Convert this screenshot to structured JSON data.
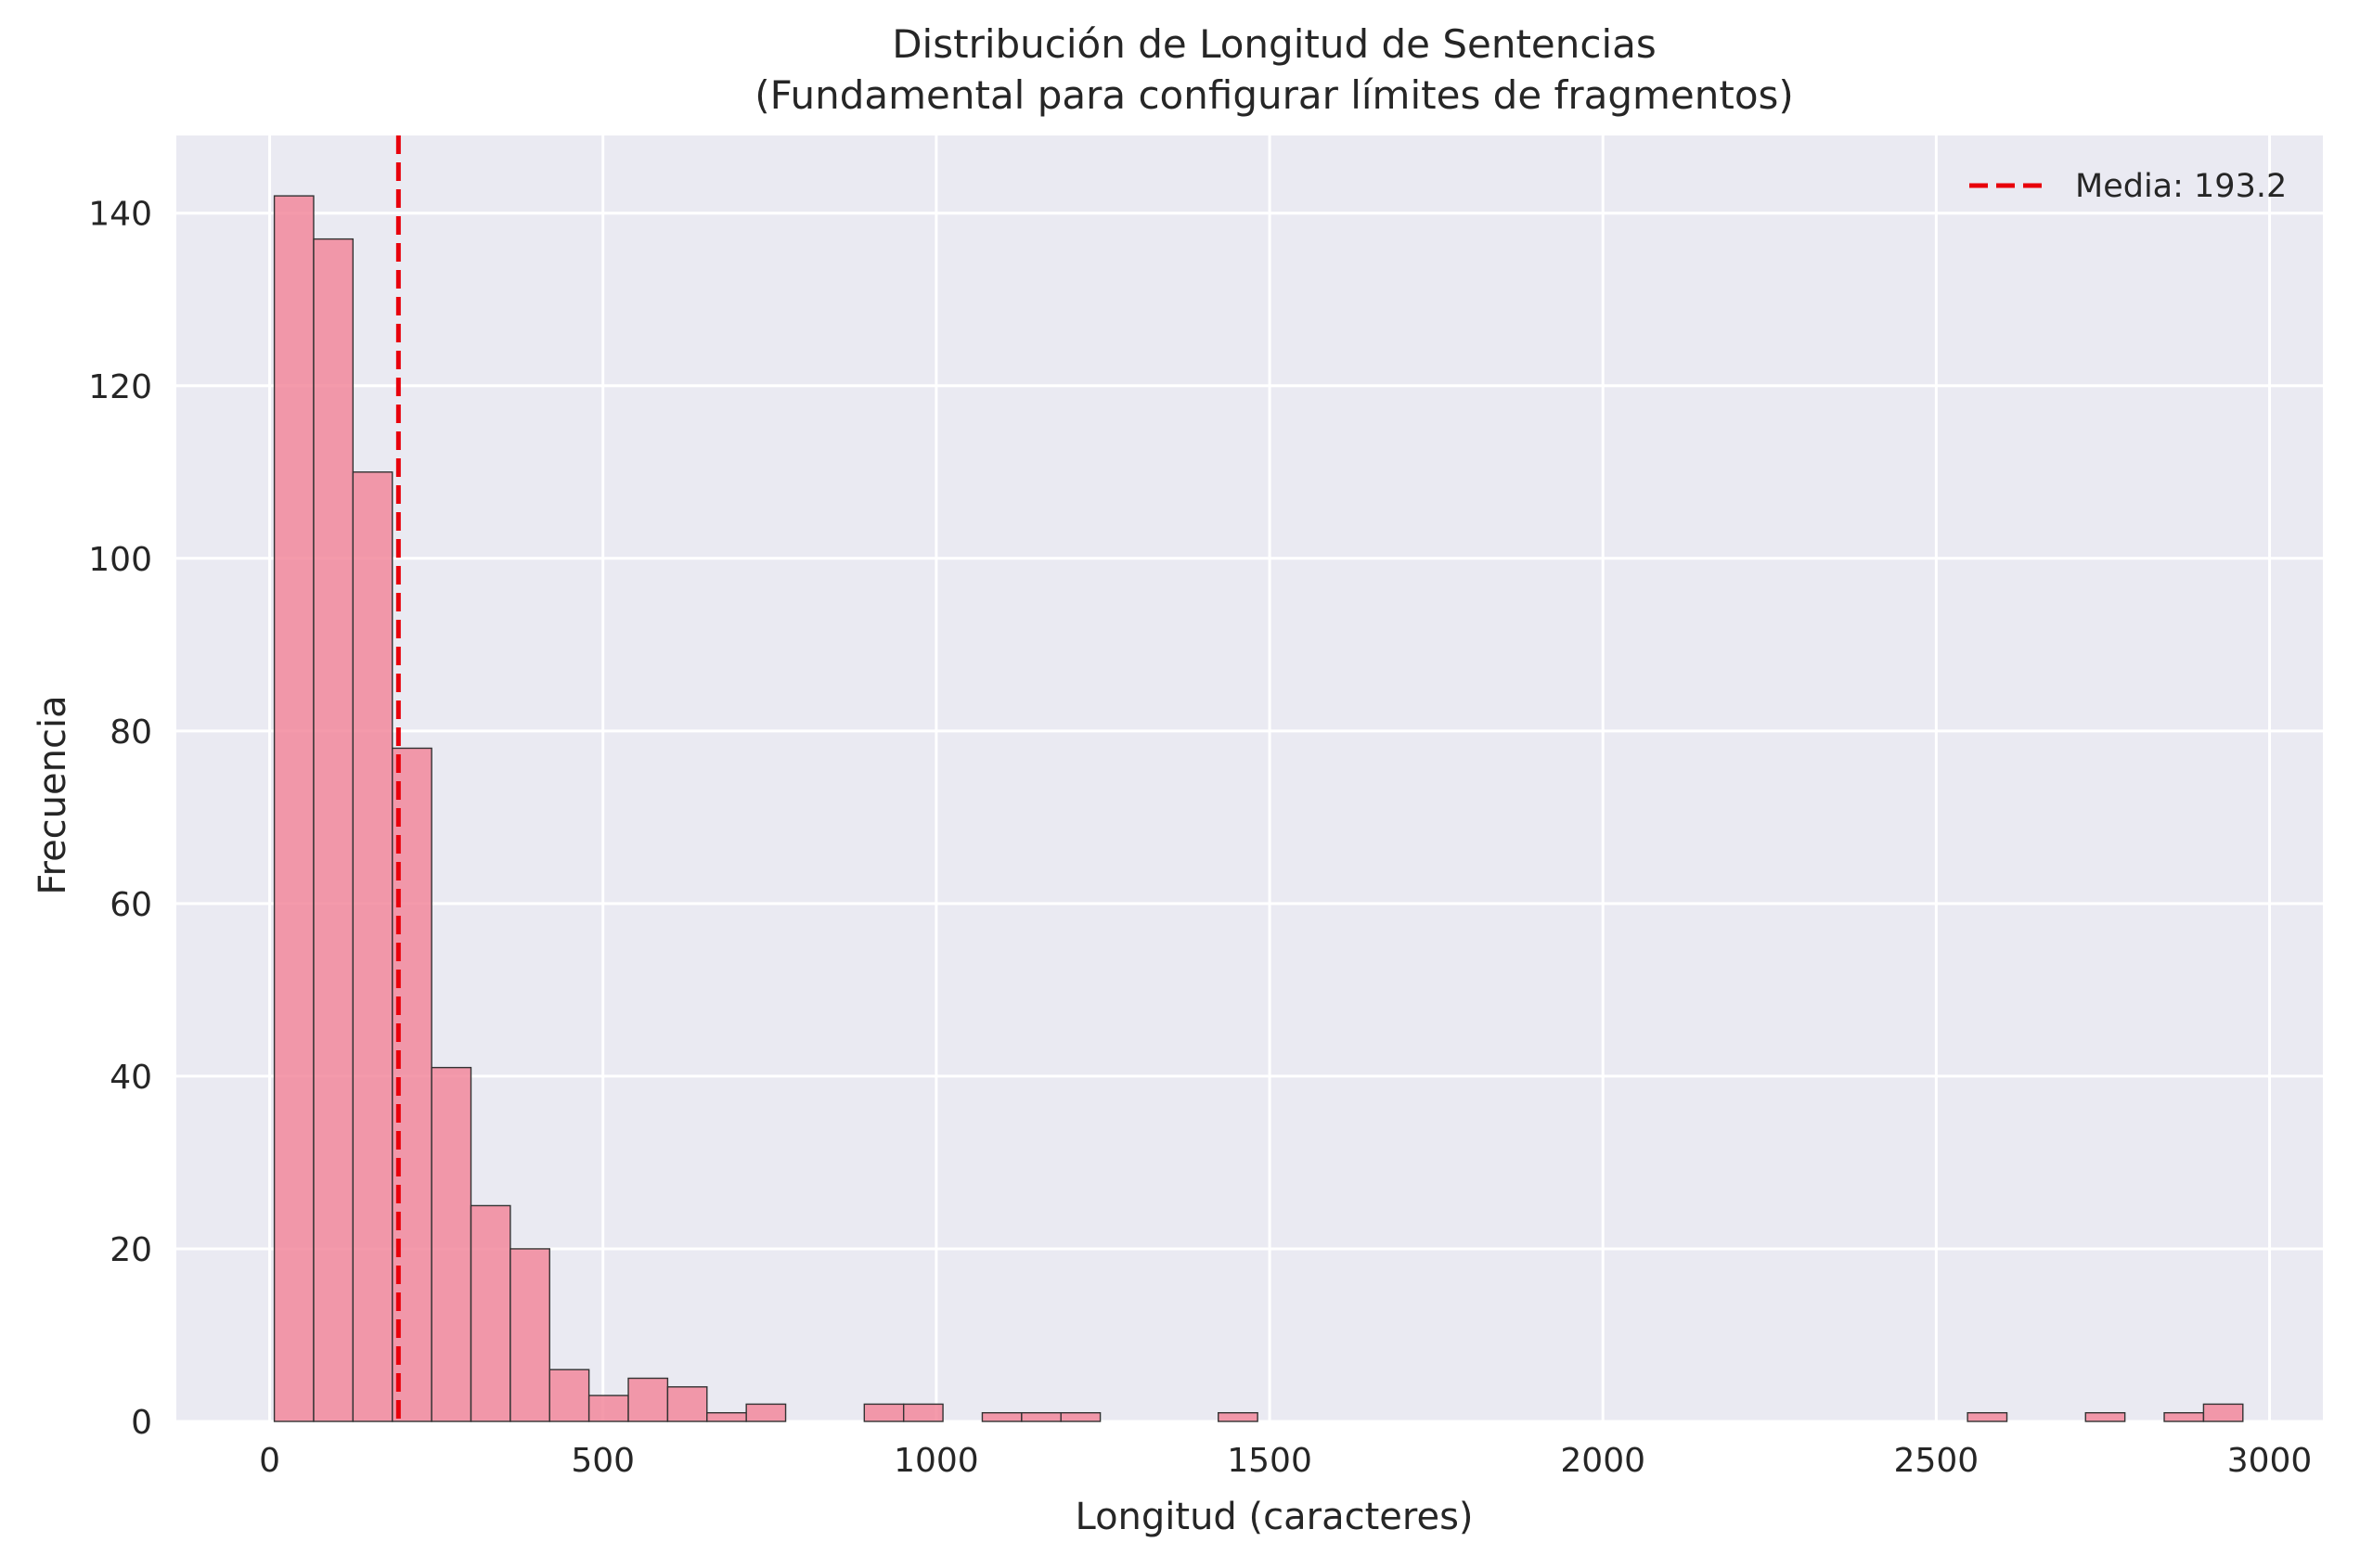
{
  "chart_data": {
    "type": "bar",
    "title": "Distribución de Longitud de Sentencias",
    "subtitle": "(Fundamental para configurar límites de fragmentos)",
    "xlabel": "Longitud (caracteres)",
    "ylabel": "Frecuencia",
    "xlim": [
      -140,
      3080
    ],
    "ylim": [
      0,
      149
    ],
    "x_ticks": [
      0,
      500,
      1000,
      1500,
      2000,
      2500,
      3000
    ],
    "y_ticks": [
      0,
      20,
      40,
      60,
      80,
      100,
      120,
      140
    ],
    "grid": true,
    "legend_position": "top-right",
    "bin_width": 59,
    "bin_starts": [
      7,
      66,
      125,
      184,
      243,
      302,
      361,
      420,
      479,
      538,
      597,
      656,
      715,
      892,
      951,
      1069,
      1128,
      1187,
      1423,
      2547,
      2724,
      2842,
      2901
    ],
    "values": [
      142,
      137,
      110,
      78,
      41,
      25,
      20,
      6,
      3,
      5,
      4,
      1,
      2,
      2,
      2,
      1,
      1,
      1,
      1,
      1,
      1,
      1,
      2
    ],
    "mean_line": {
      "x": 193.2,
      "label": "Media: 193.2"
    },
    "colors": {
      "bar_fill": "#f2889c",
      "bar_edge": "#333333",
      "mean_line": "#e8000b",
      "plot_background": "#eaeaf2",
      "grid": "#ffffff"
    }
  }
}
